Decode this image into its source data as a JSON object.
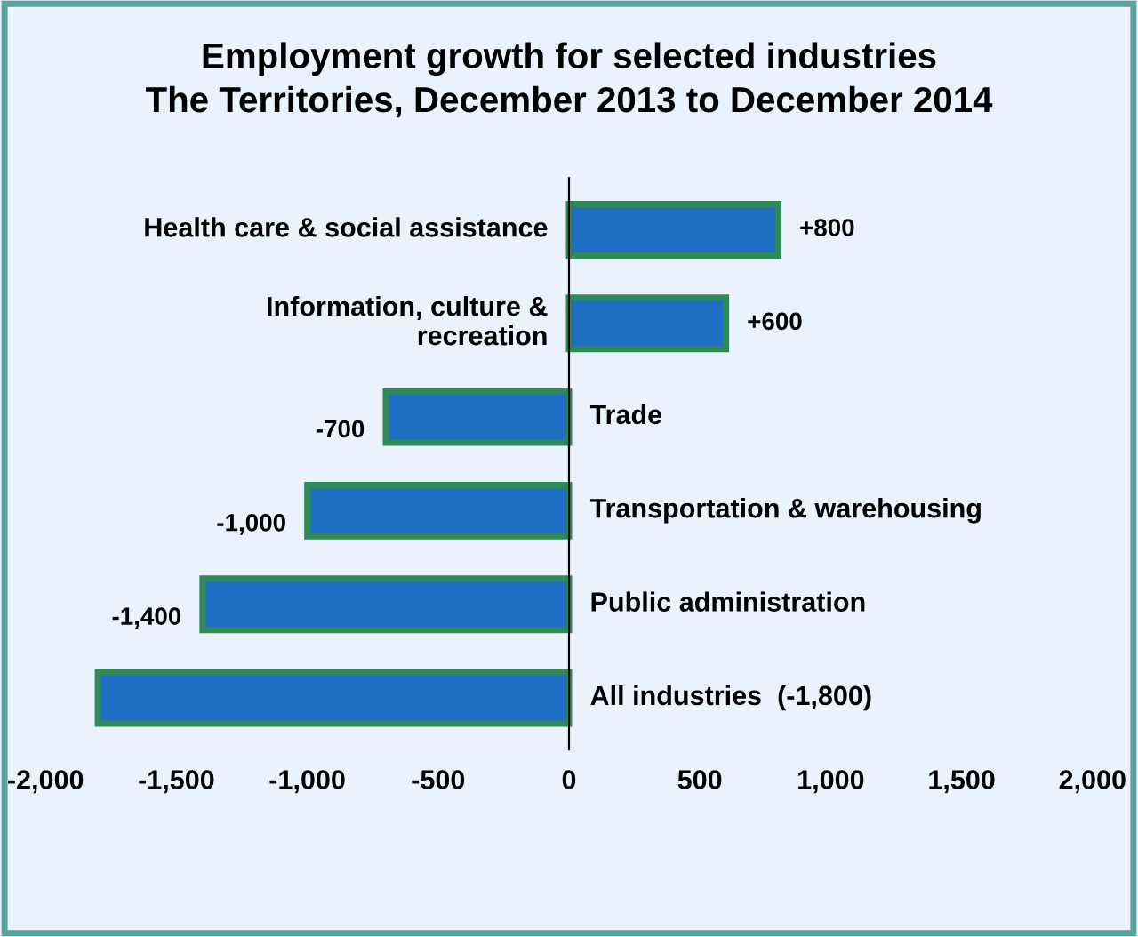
{
  "chart_data": {
    "type": "bar",
    "orientation": "horizontal",
    "title": "Employment growth for selected industries\nThe Territories, December 2013 to December 2014",
    "categories": [
      "Health care & social assistance",
      "Information, culture &\nrecreation",
      "Trade",
      "Transportation & warehousing",
      "Public administration",
      "All industries  (-1,800)"
    ],
    "values": [
      800,
      600,
      -700,
      -1000,
      -1400,
      -1800
    ],
    "value_labels": [
      "+800",
      "+600",
      "-700",
      "-1,000",
      "-1,400",
      null
    ],
    "color": "#1f6fc4",
    "xlim": [
      -2000,
      2000
    ],
    "xticks": [
      {
        "value": -2000,
        "label": "-2,000"
      },
      {
        "value": -1500,
        "label": "-1,500"
      },
      {
        "value": -1000,
        "label": "-1,000"
      },
      {
        "value": -500,
        "label": "-500"
      },
      0,
      500,
      {
        "value": 1000,
        "label": "1,000"
      },
      {
        "value": 1500,
        "label": "1,500"
      },
      {
        "value": 2000,
        "label": "2,000"
      }
    ],
    "grid": false,
    "legend": false
  }
}
